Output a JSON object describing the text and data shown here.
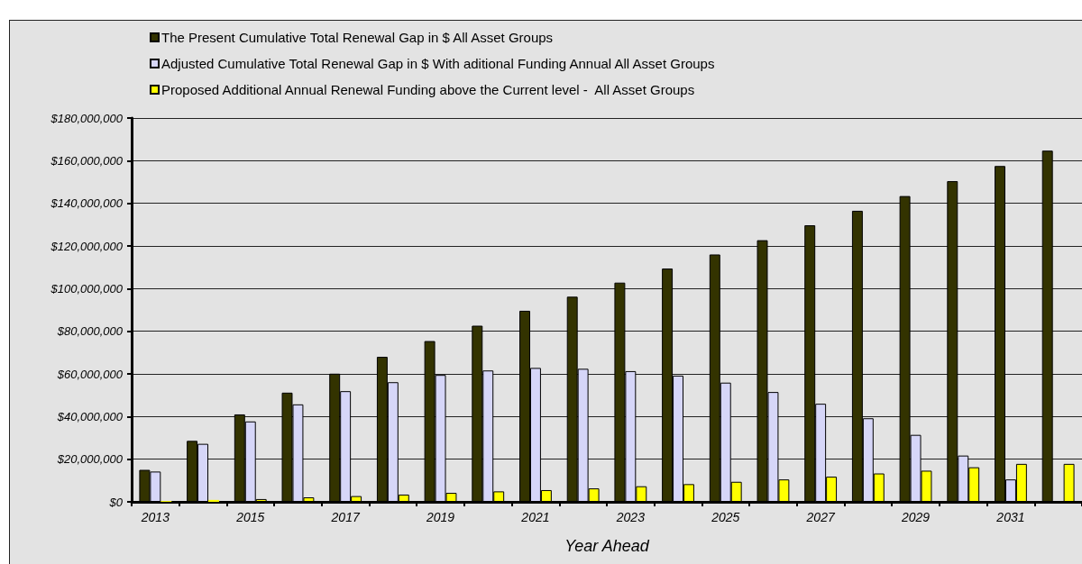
{
  "chart_data": {
    "type": "bar",
    "categories": [
      "2013",
      null,
      "2015",
      null,
      "2017",
      null,
      "2019",
      null,
      "2021",
      null,
      "2023",
      null,
      "2025",
      null,
      "2027",
      null,
      "2029",
      null,
      "2031",
      null
    ],
    "series": [
      {
        "name": "The Present Cumulative Total Renewal Gap in $ All Asset Groups",
        "color": "#333300",
        "values": [
          15000000,
          28600000,
          41000000,
          51200000,
          60100000,
          68000000,
          75400000,
          82600000,
          89600000,
          96200000,
          102800000,
          109400000,
          116000000,
          122700000,
          129700000,
          136500000,
          143400000,
          150400000,
          157500000,
          164700000
        ]
      },
      {
        "name": "Adjusted Cumulative Total Renewal Gap in $ With aditional Funding Annual All Asset Groups",
        "color": "#d6d6f8",
        "values": [
          14200000,
          27200000,
          37700000,
          45700000,
          51900000,
          56100000,
          59500000,
          61600000,
          62800000,
          62400000,
          61300000,
          59200000,
          55900000,
          51500000,
          46000000,
          39200000,
          31400000,
          21700000,
          10500000,
          null
        ]
      },
      {
        "name": "Proposed Additional Annual Renewal Funding above the Current level -  All Asset Groups",
        "color": "#ffff00",
        "values": [
          400000,
          900000,
          1300000,
          2100000,
          2700000,
          3400000,
          4200000,
          4900000,
          5500000,
          6300000,
          7300000,
          8300000,
          9400000,
          10500000,
          11800000,
          13300000,
          14600000,
          16200000,
          17800000,
          17800000
        ]
      }
    ],
    "xlabel": "Year Ahead",
    "ylim": [
      0,
      180000000
    ],
    "yticks": [
      {
        "value": 0,
        "label": "$0"
      },
      {
        "value": 20000000,
        "label": "$20,000,000"
      },
      {
        "value": 40000000,
        "label": "$40,000,000"
      },
      {
        "value": 60000000,
        "label": "$60,000,000"
      },
      {
        "value": 80000000,
        "label": "$80,000,000"
      },
      {
        "value": 100000000,
        "label": "$100,000,000"
      },
      {
        "value": 120000000,
        "label": "$120,000,000"
      },
      {
        "value": 140000000,
        "label": "$140,000,000"
      },
      {
        "value": 160000000,
        "label": "$160,000,000"
      },
      {
        "value": 180000000,
        "label": "$180,000,000"
      }
    ],
    "grid": "y",
    "legend": "top left"
  }
}
